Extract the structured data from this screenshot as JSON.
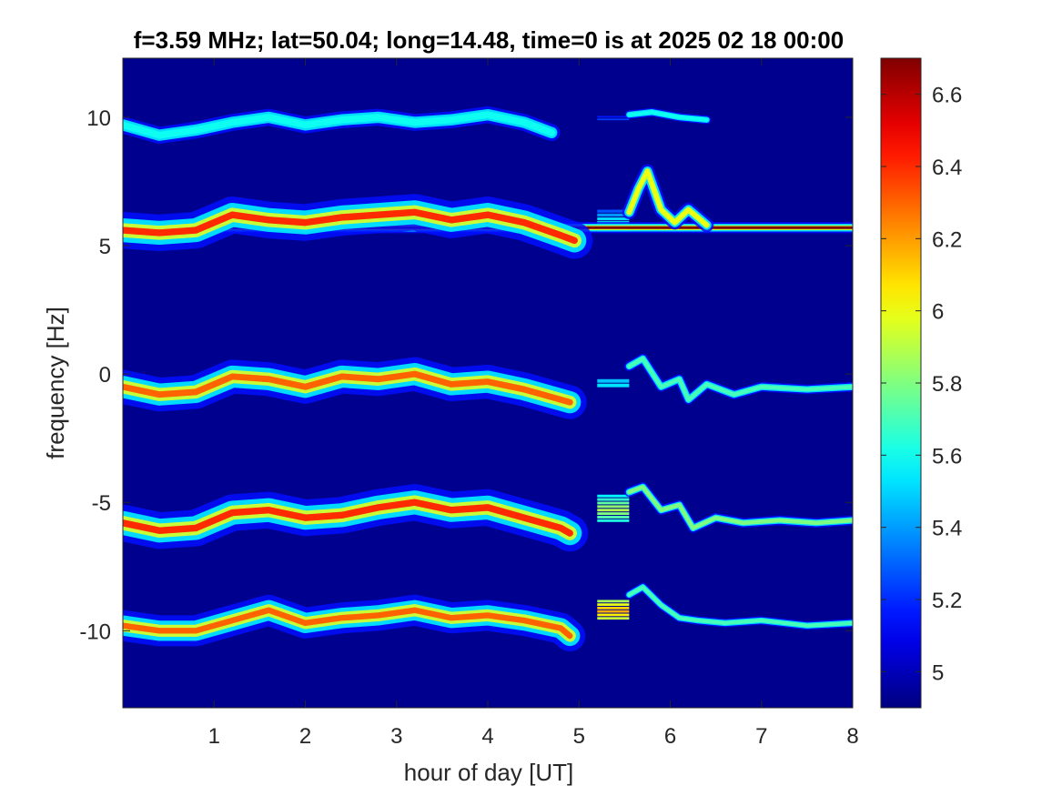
{
  "chart_data": {
    "type": "heatmap",
    "title": "f=3.59 MHz;  lat=50.04; long=14.48, time=0 is at 2025 02 18 00:00",
    "xlabel": "hour of day [UT]",
    "ylabel": "frequency [Hz]",
    "xlim": [
      0,
      8
    ],
    "ylim": [
      -13,
      12.3
    ],
    "xticks": [
      "1",
      "2",
      "3",
      "4",
      "5",
      "6",
      "7",
      "8"
    ],
    "yticks": [
      "-10",
      "-5",
      "0",
      "5",
      "10"
    ],
    "colorbar": {
      "clim": [
        4.9,
        6.7
      ],
      "ticks": [
        "5",
        "5.2",
        "5.4",
        "5.6",
        "5.8",
        "6",
        "6.2",
        "6.4",
        "6.6"
      ],
      "colormap": "jet"
    },
    "background_color": "#00008f",
    "traces": [
      {
        "name": "carrier",
        "segments": [
          {
            "hour": [
              0,
              5.5,
              8
            ],
            "freq": [
              5.7,
              5.7,
              5.7
            ],
            "intensity": 6.7,
            "spread": 0.15
          }
        ]
      },
      {
        "name": "band near 10 Hz",
        "segments": [
          {
            "hour": [
              0,
              0.4,
              0.8,
              1.2,
              1.6,
              2.0,
              2.4,
              2.8,
              3.2,
              3.6,
              4.0,
              4.4,
              4.7
            ],
            "freq": [
              9.7,
              9.3,
              9.5,
              9.8,
              10.0,
              9.7,
              9.9,
              10.0,
              9.8,
              9.9,
              10.1,
              9.8,
              9.4
            ],
            "intensity": 5.6,
            "spread": 0.25
          },
          {
            "hour": [
              5.55,
              5.8,
              6.1,
              6.4
            ],
            "freq": [
              10.1,
              10.2,
              10.0,
              9.9
            ],
            "intensity": 5.6,
            "spread": 0.1
          }
        ]
      },
      {
        "name": "band near 6 Hz",
        "segments": [
          {
            "hour": [
              0,
              0.4,
              0.8,
              1.2,
              1.6,
              2.0,
              2.4,
              2.8,
              3.2,
              3.6,
              4.0,
              4.4,
              4.8,
              4.95
            ],
            "freq": [
              5.6,
              5.5,
              5.6,
              6.2,
              6.0,
              5.9,
              6.1,
              6.2,
              6.3,
              6.0,
              6.2,
              5.9,
              5.4,
              5.2
            ],
            "intensity": 6.4,
            "spread": 0.6
          },
          {
            "hour": [
              5.55,
              5.65,
              5.75,
              5.9,
              6.05,
              6.2,
              6.4
            ],
            "freq": [
              6.3,
              7.2,
              7.9,
              6.4,
              5.9,
              6.4,
              5.8
            ],
            "intensity": 6.0,
            "spread": 0.2
          }
        ]
      },
      {
        "name": "band near 0 Hz",
        "segments": [
          {
            "hour": [
              0,
              0.4,
              0.8,
              1.2,
              1.6,
              2.0,
              2.4,
              2.8,
              3.2,
              3.6,
              4.0,
              4.4,
              4.8,
              4.9
            ],
            "freq": [
              -0.5,
              -0.8,
              -0.7,
              -0.1,
              -0.2,
              -0.5,
              -0.1,
              -0.2,
              0.0,
              -0.4,
              -0.3,
              -0.6,
              -1.0,
              -1.1
            ],
            "intensity": 6.3,
            "spread": 0.55
          },
          {
            "hour": [
              5.55,
              5.7,
              5.9,
              6.1,
              6.2,
              6.4,
              6.7,
              7.0,
              7.5,
              8.0
            ],
            "freq": [
              0.3,
              0.6,
              -0.5,
              -0.2,
              -1.0,
              -0.4,
              -0.8,
              -0.5,
              -0.6,
              -0.5
            ],
            "intensity": 5.7,
            "spread": 0.12
          }
        ]
      },
      {
        "name": "band near -5 Hz",
        "segments": [
          {
            "hour": [
              0,
              0.4,
              0.8,
              1.2,
              1.6,
              2.0,
              2.4,
              2.8,
              3.2,
              3.6,
              4.0,
              4.4,
              4.8,
              4.9
            ],
            "freq": [
              -5.8,
              -6.1,
              -6.0,
              -5.4,
              -5.3,
              -5.6,
              -5.5,
              -5.2,
              -5.0,
              -5.3,
              -5.2,
              -5.6,
              -6.0,
              -6.2
            ],
            "intensity": 6.4,
            "spread": 0.6
          },
          {
            "hour": [
              5.55,
              5.7,
              5.9,
              6.1,
              6.25,
              6.5,
              6.8,
              7.2,
              7.6,
              8.0
            ],
            "freq": [
              -4.6,
              -4.4,
              -5.3,
              -5.1,
              -6.0,
              -5.6,
              -5.8,
              -5.7,
              -5.8,
              -5.7
            ],
            "intensity": 5.8,
            "spread": 0.12
          }
        ]
      },
      {
        "name": "band near -10 Hz",
        "segments": [
          {
            "hour": [
              0,
              0.4,
              0.8,
              1.2,
              1.6,
              2.0,
              2.4,
              2.8,
              3.2,
              3.6,
              4.0,
              4.4,
              4.8,
              4.9
            ],
            "freq": [
              -9.8,
              -10.0,
              -10.0,
              -9.6,
              -9.2,
              -9.7,
              -9.5,
              -9.4,
              -9.2,
              -9.5,
              -9.4,
              -9.6,
              -9.9,
              -10.2
            ],
            "intensity": 6.3,
            "spread": 0.5
          },
          {
            "hour": [
              5.55,
              5.7,
              5.9,
              6.1,
              6.3,
              6.6,
              7.0,
              7.5,
              8.0
            ],
            "freq": [
              -8.6,
              -8.3,
              -9.0,
              -9.5,
              -9.6,
              -9.7,
              -9.6,
              -9.8,
              -9.7
            ],
            "intensity": 5.7,
            "spread": 0.1
          }
        ]
      }
    ],
    "blocks": [
      {
        "hour": [
          5.2,
          5.55
        ],
        "freq": [
          9.85,
          10.05
        ],
        "intensity": 5.5
      },
      {
        "hour": [
          5.2,
          5.55
        ],
        "freq": [
          5.5,
          6.4
        ],
        "intensity": 5.6
      },
      {
        "hour": [
          5.2,
          5.55
        ],
        "freq": [
          -0.55,
          -0.2
        ],
        "intensity": 5.8
      },
      {
        "hour": [
          5.2,
          5.55
        ],
        "freq": [
          -5.8,
          -4.7
        ],
        "intensity": 5.9
      },
      {
        "hour": [
          5.2,
          5.55
        ],
        "freq": [
          -9.6,
          -8.8
        ],
        "intensity": 6.2
      }
    ]
  }
}
